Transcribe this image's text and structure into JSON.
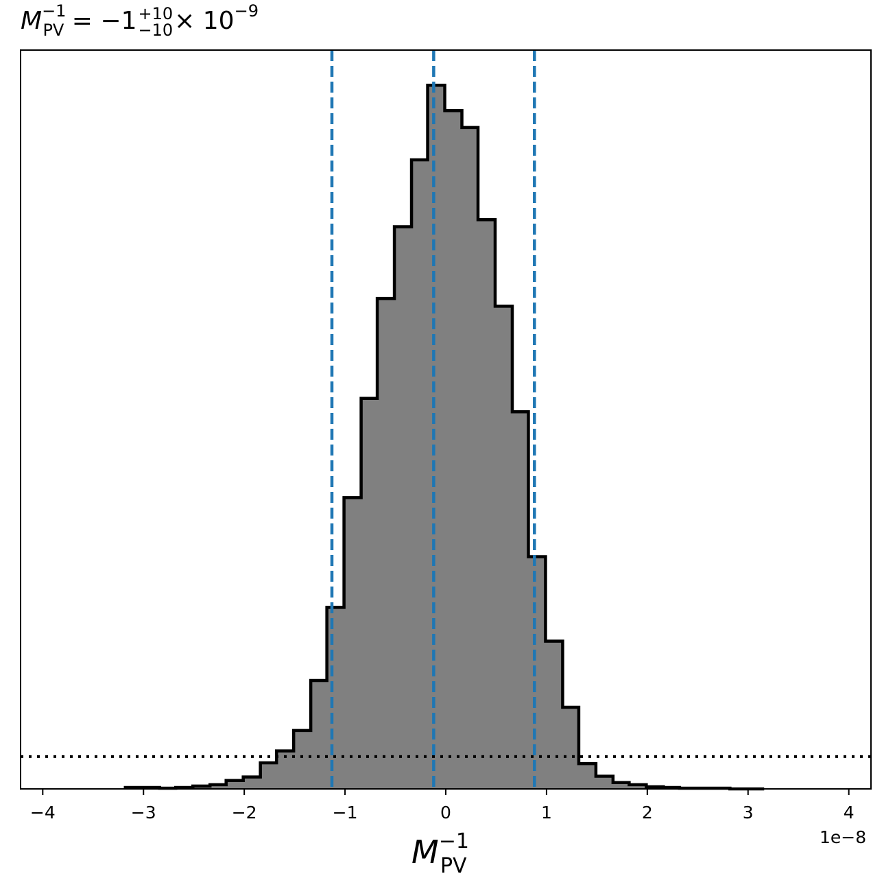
{
  "title": {
    "symbol": "M",
    "superscript": "−1",
    "subscript": "PV",
    "equals": "=",
    "value": "−1",
    "plus_err": "+10",
    "minus_err": "−10",
    "multiplier": "× 10",
    "exponent": "−9"
  },
  "xlabel": {
    "symbol": "M",
    "superscript": "−1",
    "subscript": "PV"
  },
  "x_offset_label": "1e−8",
  "colors": {
    "hist_fill": "#808080",
    "hist_edge": "#000000",
    "quantile_lines": "#1f77b4",
    "reference_line": "#000000"
  },
  "chart_data": {
    "type": "bar",
    "subtype": "step-histogram",
    "x_scale_factor": 1e-08,
    "xlim": [
      -4.22,
      4.22
    ],
    "ylim": [
      0,
      1.05
    ],
    "x_ticks": [
      -4,
      -3,
      -2,
      -1,
      0,
      1,
      2,
      3,
      4
    ],
    "x_tick_labels": [
      "−4",
      "−3",
      "−2",
      "−1",
      "0",
      "1",
      "2",
      "3",
      "4"
    ],
    "bin_edges": [
      -3.18,
      -3.01,
      -2.84,
      -2.68,
      -2.51,
      -2.34,
      -2.18,
      -2.01,
      -1.84,
      -1.68,
      -1.51,
      -1.34,
      -1.18,
      -1.01,
      -0.84,
      -0.68,
      -0.51,
      -0.34,
      -0.18,
      -0.01,
      0.16,
      0.32,
      0.49,
      0.66,
      0.82,
      0.99,
      1.16,
      1.32,
      1.49,
      1.66,
      1.82,
      1.99,
      2.16,
      2.32,
      2.49,
      2.66,
      2.82,
      2.99,
      3.16
    ],
    "counts": [
      0.002,
      0.002,
      0.001,
      0.002,
      0.004,
      0.006,
      0.012,
      0.017,
      0.037,
      0.054,
      0.083,
      0.154,
      0.258,
      0.414,
      0.555,
      0.697,
      0.799,
      0.894,
      1.0,
      0.964,
      0.94,
      0.809,
      0.686,
      0.536,
      0.33,
      0.21,
      0.116,
      0.036,
      0.018,
      0.009,
      0.006,
      0.003,
      0.002,
      0.001,
      0.001,
      0.001,
      0.0,
      0.0
    ],
    "quantile_lines_x": [
      -1.13,
      -0.12,
      0.88
    ],
    "reference_line_y": 0.046,
    "grid": false,
    "legend": "none"
  }
}
